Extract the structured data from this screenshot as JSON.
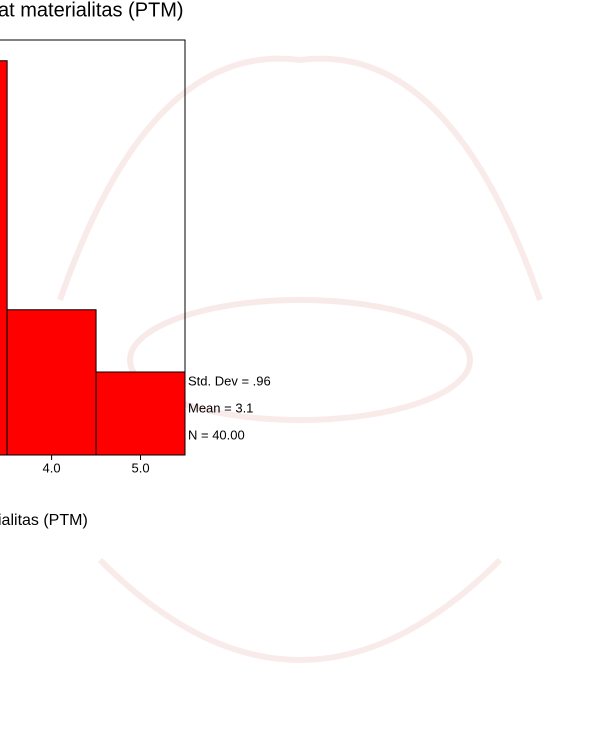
{
  "chart_data": {
    "type": "histogram",
    "title": "at materialitas (PTM)",
    "x_label": "ialitas (PTM)",
    "bins": [
      2.5,
      3.5,
      4.5,
      5.5
    ],
    "values": [
      19,
      7,
      4
    ],
    "color": "#ff0000",
    "xlim": [
      3.42,
      5.5
    ],
    "xticks": [
      {
        "value": 4,
        "label": "4.0"
      },
      {
        "value": 5,
        "label": "5.0"
      }
    ],
    "ylim": [
      0,
      20
    ],
    "annotations": [
      "Std. Dev = .96",
      "Mean = 3.1",
      "N = 40.00"
    ]
  }
}
